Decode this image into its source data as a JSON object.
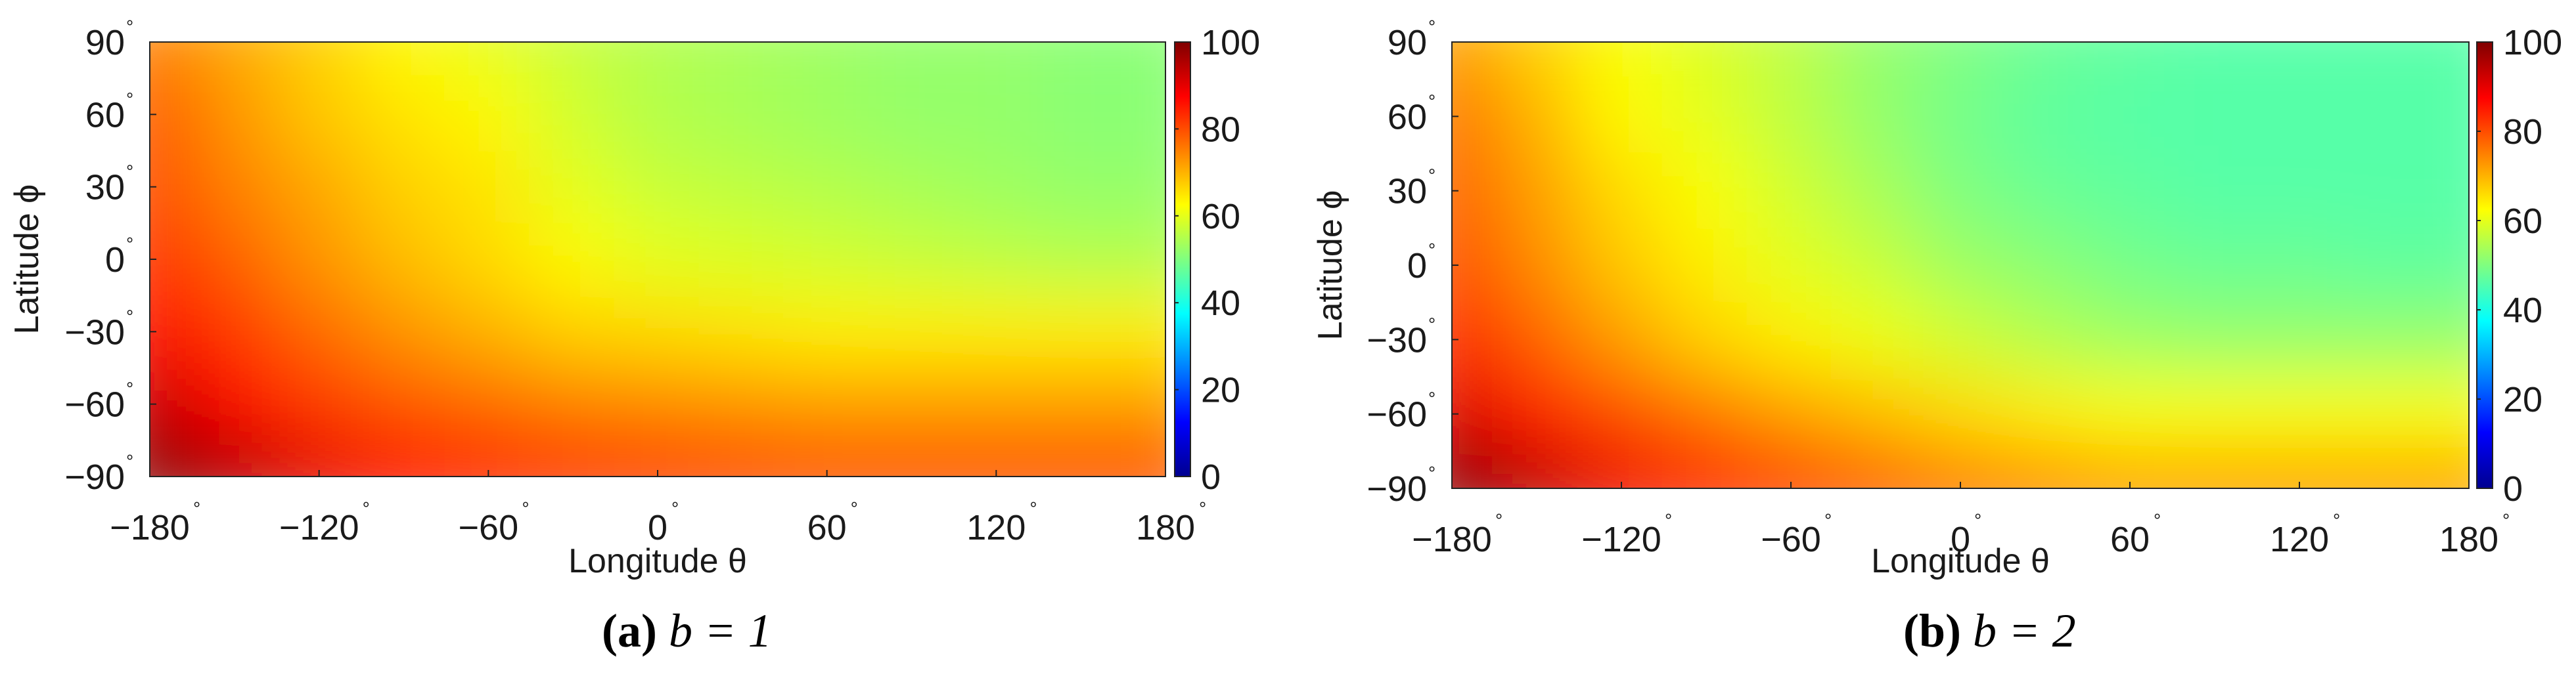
{
  "chart_data": [
    {
      "type": "heatmap",
      "caption_letter": "(a)",
      "caption_equation": "b = 1",
      "xlabel": "Longitude θ",
      "ylabel": "Latitude ϕ",
      "xlim": [
        -180,
        180
      ],
      "ylim": [
        -90,
        90
      ],
      "xticks": [
        -180,
        -120,
        -60,
        0,
        60,
        120,
        180
      ],
      "yticks": [
        90,
        60,
        30,
        0,
        -30,
        -60,
        -90
      ],
      "xtick_labels": [
        "−180",
        "−120",
        "−60",
        "0",
        "60",
        "120",
        "180"
      ],
      "ytick_labels": [
        "90",
        "60",
        "30",
        "0",
        "−30",
        "−60",
        "−90"
      ],
      "degree_symbol": "°",
      "colorbar": {
        "range": [
          0,
          100
        ],
        "ticks": [
          0,
          20,
          40,
          60,
          80,
          100
        ],
        "tick_labels": [
          "0",
          "20",
          "40",
          "60",
          "80",
          "100"
        ],
        "colormap": "jet"
      },
      "x": [
        -180,
        -150,
        -120,
        -90,
        -60,
        -30,
        0,
        30,
        60,
        90,
        120,
        150,
        180
      ],
      "y": [
        90,
        60,
        30,
        0,
        -30,
        -60,
        -90
      ],
      "z": [
        [
          75,
          71,
          67,
          63,
          60,
          57,
          55,
          54,
          53,
          52,
          52,
          51,
          51
        ],
        [
          79,
          73,
          68,
          65,
          63,
          58,
          55,
          54,
          53,
          52,
          52,
          51,
          51
        ],
        [
          80,
          75,
          71,
          67,
          65,
          60,
          57,
          56,
          55,
          54,
          53,
          52,
          52
        ],
        [
          83,
          78,
          73,
          69,
          66,
          63,
          60,
          59,
          58,
          57,
          56,
          55,
          55
        ],
        [
          87,
          82,
          77,
          73,
          70,
          67,
          66,
          65,
          64,
          64,
          64,
          64,
          64
        ],
        [
          93,
          87,
          82,
          79,
          77,
          75,
          74,
          73,
          72,
          72,
          72,
          72,
          72
        ],
        [
          100,
          95,
          90,
          87,
          85,
          83,
          82,
          81,
          80,
          80,
          80,
          80,
          80
        ]
      ]
    },
    {
      "type": "heatmap",
      "caption_letter": "(b)",
      "caption_equation": "b = 2",
      "xlabel": "Longitude θ",
      "ylabel": "Latitude ϕ",
      "xlim": [
        -180,
        180
      ],
      "ylim": [
        -90,
        90
      ],
      "xticks": [
        -180,
        -120,
        -60,
        0,
        60,
        120,
        180
      ],
      "yticks": [
        90,
        60,
        30,
        0,
        -30,
        -60,
        -90
      ],
      "xtick_labels": [
        "−180",
        "−120",
        "−60",
        "0",
        "60",
        "120",
        "180"
      ],
      "ytick_labels": [
        "90",
        "60",
        "30",
        "0",
        "−30",
        "−60",
        "−90"
      ],
      "degree_symbol": "°",
      "colorbar": {
        "range": [
          0,
          100
        ],
        "ticks": [
          0,
          20,
          40,
          60,
          80,
          100
        ],
        "tick_labels": [
          "0",
          "20",
          "40",
          "60",
          "80",
          "100"
        ],
        "colormap": "jet"
      },
      "x": [
        -180,
        -150,
        -120,
        -90,
        -60,
        -30,
        0,
        30,
        60,
        90,
        120,
        150,
        180
      ],
      "y": [
        90,
        60,
        30,
        0,
        -30,
        -60,
        -90
      ],
      "z": [
        [
          72,
          67,
          62,
          59,
          56,
          52,
          50,
          48,
          47,
          46,
          46,
          46,
          46
        ],
        [
          76,
          70,
          63,
          60,
          56,
          52,
          49,
          47,
          46,
          46,
          46,
          46,
          46
        ],
        [
          78,
          72,
          66,
          62,
          58,
          54,
          50,
          48,
          47,
          46,
          46,
          46,
          46
        ],
        [
          80,
          74,
          68,
          64,
          60,
          57,
          53,
          51,
          49,
          48,
          48,
          47,
          47
        ],
        [
          84,
          78,
          72,
          67,
          64,
          61,
          58,
          55,
          53,
          52,
          52,
          52,
          52
        ],
        [
          91,
          85,
          80,
          76,
          72,
          69,
          66,
          64,
          62,
          62,
          62,
          62,
          62
        ],
        [
          100,
          94,
          89,
          85,
          82,
          79,
          76,
          74,
          72,
          72,
          72,
          72,
          72
        ]
      ]
    }
  ]
}
